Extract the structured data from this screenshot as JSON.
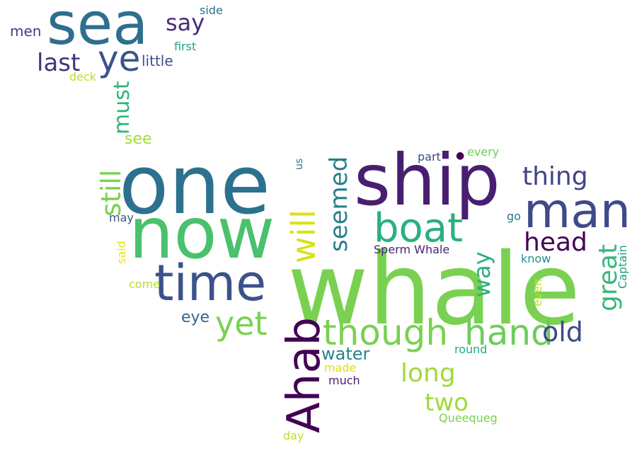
{
  "words": [
    {
      "text": "whale",
      "color": "#7ad151"
    },
    {
      "text": "one",
      "color": "#2c728e"
    },
    {
      "text": "now",
      "color": "#4ac16d"
    },
    {
      "text": "ship",
      "color": "#481f70"
    },
    {
      "text": "sea",
      "color": "#2e6e8e"
    },
    {
      "text": "time",
      "color": "#3b528b"
    },
    {
      "text": "man",
      "color": "#3e4a89"
    },
    {
      "text": "boat",
      "color": "#2ab07f"
    },
    {
      "text": "Ahab",
      "color": "#440154"
    },
    {
      "text": "though",
      "color": "#7ad151"
    },
    {
      "text": "hand",
      "color": "#6ccd5a"
    },
    {
      "text": "ye",
      "color": "#3b528b"
    },
    {
      "text": "yet",
      "color": "#7ad151"
    },
    {
      "text": "old",
      "color": "#3e4a89"
    },
    {
      "text": "will",
      "color": "#d8e219"
    },
    {
      "text": "thing",
      "color": "#414487"
    },
    {
      "text": "still",
      "color": "#7ad151"
    },
    {
      "text": "head",
      "color": "#440154"
    },
    {
      "text": "seemed",
      "color": "#287d8e"
    },
    {
      "text": "great",
      "color": "#35b779"
    },
    {
      "text": "long",
      "color": "#a0da39"
    },
    {
      "text": "last",
      "color": "#46327e"
    },
    {
      "text": "way",
      "color": "#2ab07f"
    },
    {
      "text": "two",
      "color": "#a0da39"
    },
    {
      "text": "must",
      "color": "#2fb47c"
    },
    {
      "text": "say",
      "color": "#472d7b"
    },
    {
      "text": "water",
      "color": "#26828e"
    },
    {
      "text": "eye",
      "color": "#31688e"
    },
    {
      "text": "men",
      "color": "#433e85"
    },
    {
      "text": "see",
      "color": "#a5db36"
    },
    {
      "text": "little",
      "color": "#3b528b"
    },
    {
      "text": "Sperm Whale",
      "color": "#482475"
    },
    {
      "text": "Captain",
      "color": "#1fa088"
    },
    {
      "text": "part",
      "color": "#3e4989"
    },
    {
      "text": "know",
      "color": "#21918c"
    },
    {
      "text": "first",
      "color": "#20a486"
    },
    {
      "text": "every",
      "color": "#6ece58"
    },
    {
      "text": "side",
      "color": "#2d708e"
    },
    {
      "text": "round",
      "color": "#22a884"
    },
    {
      "text": "much",
      "color": "#481f70"
    },
    {
      "text": "come",
      "color": "#b8de29"
    },
    {
      "text": "made",
      "color": "#d8e219"
    },
    {
      "text": "day",
      "color": "#bddf26"
    },
    {
      "text": "Queequeg",
      "color": "#7ad151"
    },
    {
      "text": "deck",
      "color": "#bddf26"
    },
    {
      "text": "may",
      "color": "#39568c"
    },
    {
      "text": "go",
      "color": "#2c728e"
    },
    {
      "text": "us",
      "color": "#2c728e"
    },
    {
      "text": "said",
      "color": "#e4e51a"
    },
    {
      "text": "even",
      "color": "#c2df23"
    },
    {
      "text": "dot",
      "color": "#440154"
    }
  ]
}
